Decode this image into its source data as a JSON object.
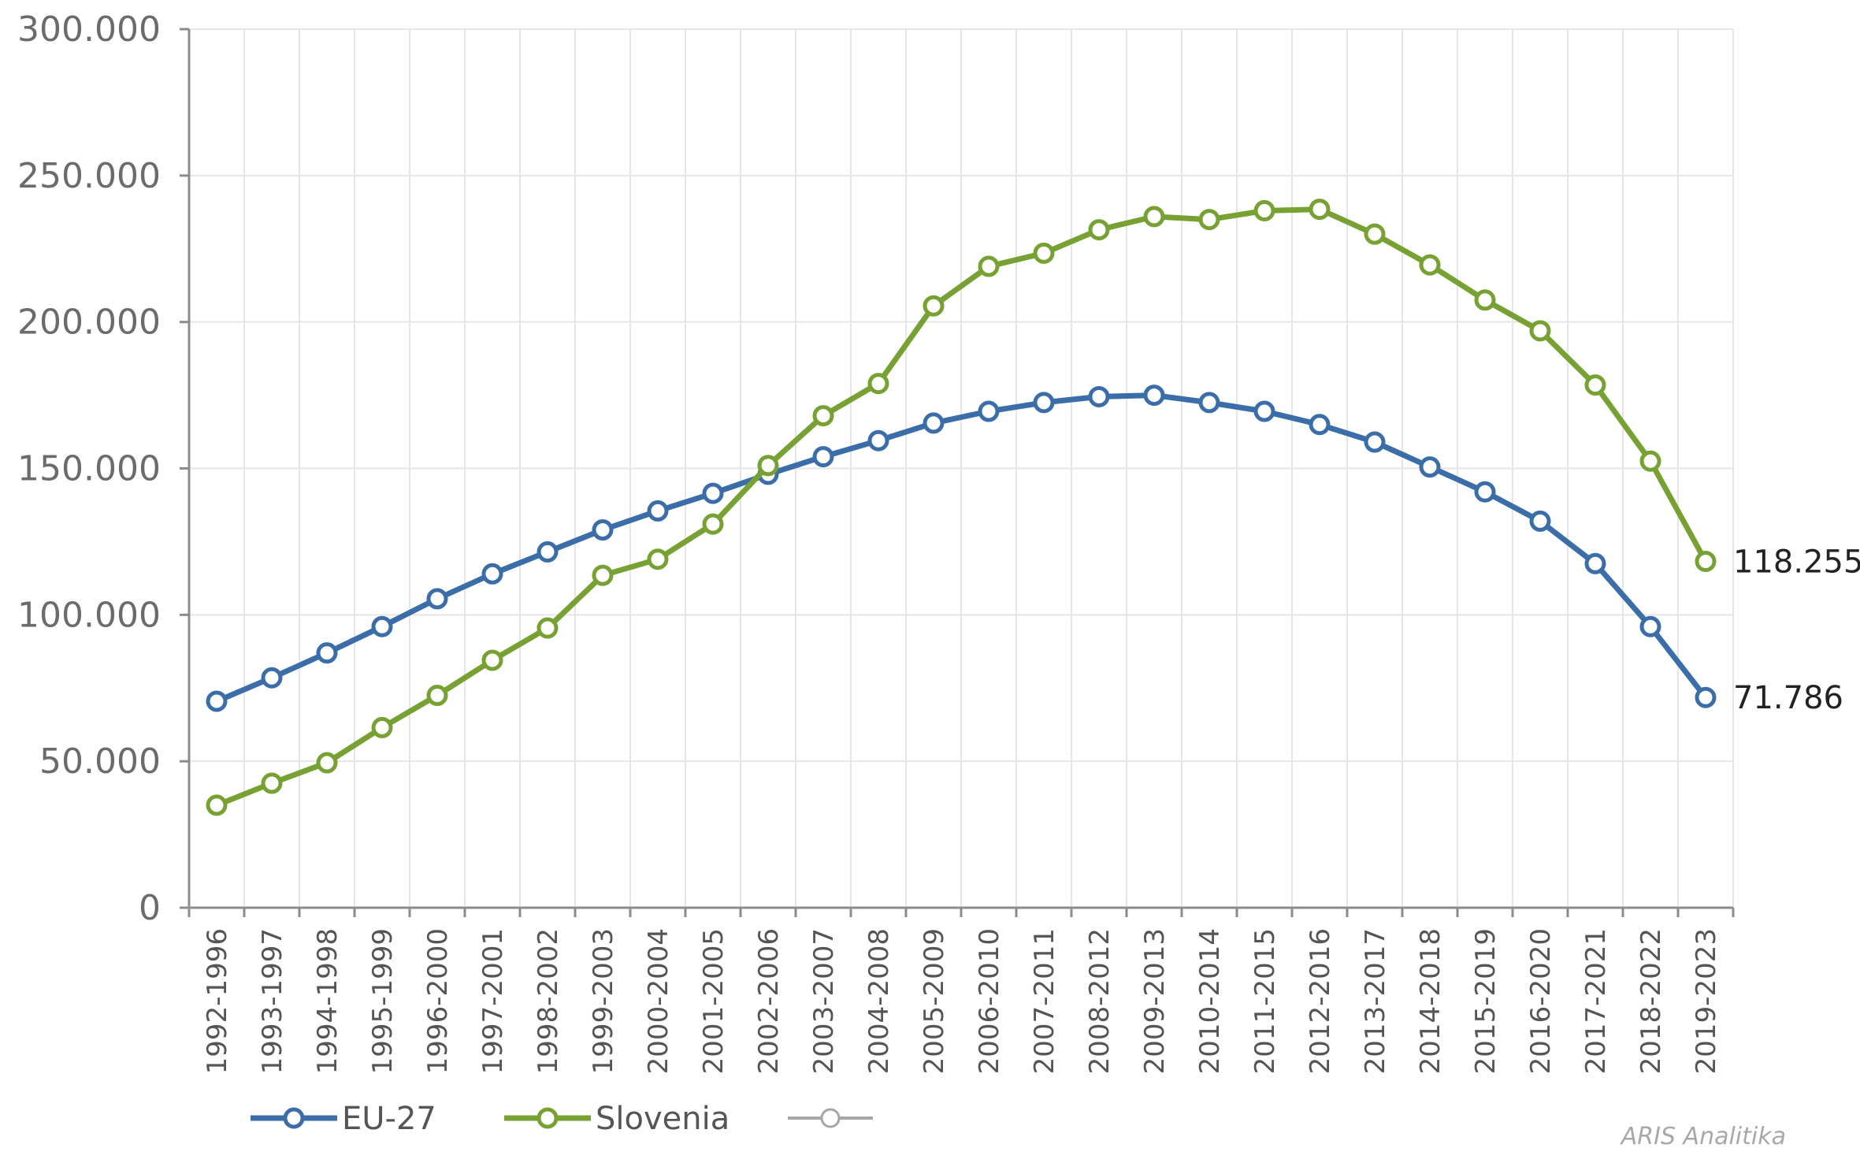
{
  "chart_data": {
    "type": "line",
    "title": "",
    "xlabel": "",
    "ylabel": "",
    "ylim": [
      0,
      300000
    ],
    "y_ticks": [
      0,
      50000,
      100000,
      150000,
      200000,
      250000,
      300000
    ],
    "y_tick_labels": [
      "0",
      "50.000",
      "100.000",
      "150.000",
      "200.000",
      "250.000",
      "300.000"
    ],
    "grid": true,
    "legend_position": "bottom-left",
    "categories": [
      "1992-1996",
      "1993-1997",
      "1994-1998",
      "1995-1999",
      "1996-2000",
      "1997-2001",
      "1998-2002",
      "1999-2003",
      "2000-2004",
      "2001-2005",
      "2002-2006",
      "2003-2007",
      "2004-2008",
      "2005-2009",
      "2006-2010",
      "2007-2011",
      "2008-2012",
      "2009-2013",
      "2010-2014",
      "2011-2015",
      "2012-2016",
      "2013-2017",
      "2014-2018",
      "2015-2019",
      "2016-2020",
      "2017-2021",
      "2018-2022",
      "2019-2023"
    ],
    "series": [
      {
        "name": "EU-27",
        "color": "#3b6ea8",
        "values": [
          70500,
          78500,
          87000,
          96000,
          105500,
          114000,
          121500,
          129000,
          135500,
          141500,
          148000,
          154000,
          159500,
          165500,
          169500,
          172500,
          174500,
          175000,
          172500,
          169500,
          165000,
          159000,
          150500,
          142000,
          132000,
          117500,
          96000,
          71786
        ],
        "end_label": "71.786"
      },
      {
        "name": "Slovenia",
        "color": "#77a132",
        "values": [
          35000,
          42500,
          49500,
          61500,
          72500,
          84500,
          95500,
          113500,
          119000,
          131000,
          151000,
          168000,
          179000,
          205500,
          219000,
          223500,
          231500,
          236000,
          235000,
          238000,
          238500,
          230000,
          219500,
          207500,
          197000,
          178500,
          152500,
          118255
        ],
        "end_label": "118.255"
      }
    ],
    "legend": [
      {
        "label": "EU-27",
        "color": "#3b6ea8"
      },
      {
        "label": "Slovenia",
        "color": "#77a132"
      },
      {
        "label": "",
        "color": "#a6a6a6"
      }
    ]
  },
  "watermark": "ARIS Analitika"
}
